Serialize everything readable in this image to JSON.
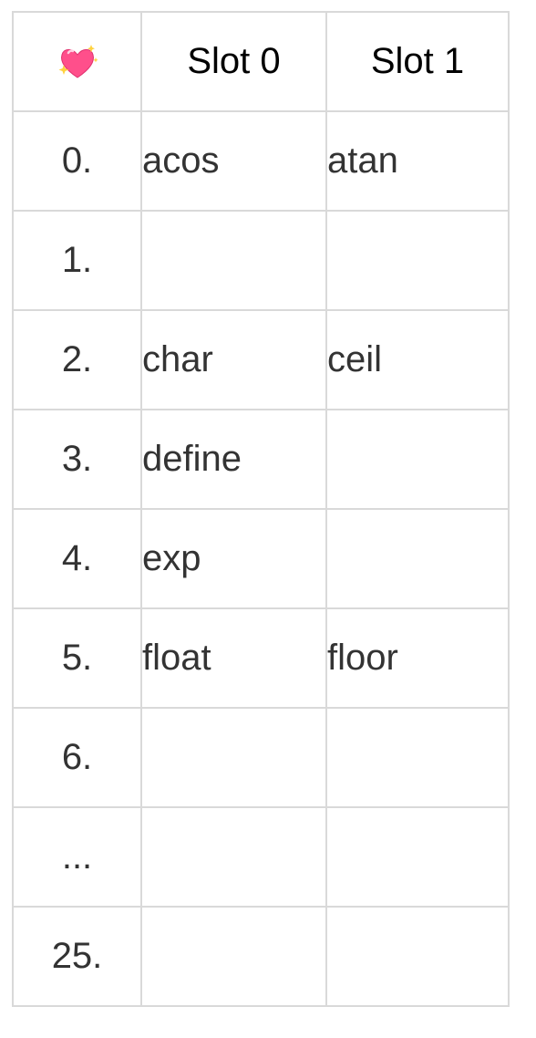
{
  "table": {
    "corner_icon": "sparkling-heart-icon",
    "headers": [
      "Slot 0",
      "Slot 1"
    ],
    "rows": [
      {
        "index": "0.",
        "slot0": "acos",
        "slot1": "atan"
      },
      {
        "index": "1.",
        "slot0": "",
        "slot1": ""
      },
      {
        "index": "2.",
        "slot0": "char",
        "slot1": "ceil"
      },
      {
        "index": "3.",
        "slot0": "define",
        "slot1": ""
      },
      {
        "index": "4.",
        "slot0": "exp",
        "slot1": ""
      },
      {
        "index": "5.",
        "slot0": "float",
        "slot1": "floor"
      },
      {
        "index": "6.",
        "slot0": "",
        "slot1": ""
      },
      {
        "index": "...",
        "slot0": "",
        "slot1": ""
      },
      {
        "index": "25.",
        "slot0": "",
        "slot1": ""
      }
    ]
  },
  "colors": {
    "border": "#d9d9d9",
    "text": "#333333",
    "header_text": "#000000",
    "heart_pink": "#ff4f8b",
    "sparkle_yellow": "#ffd23f"
  }
}
